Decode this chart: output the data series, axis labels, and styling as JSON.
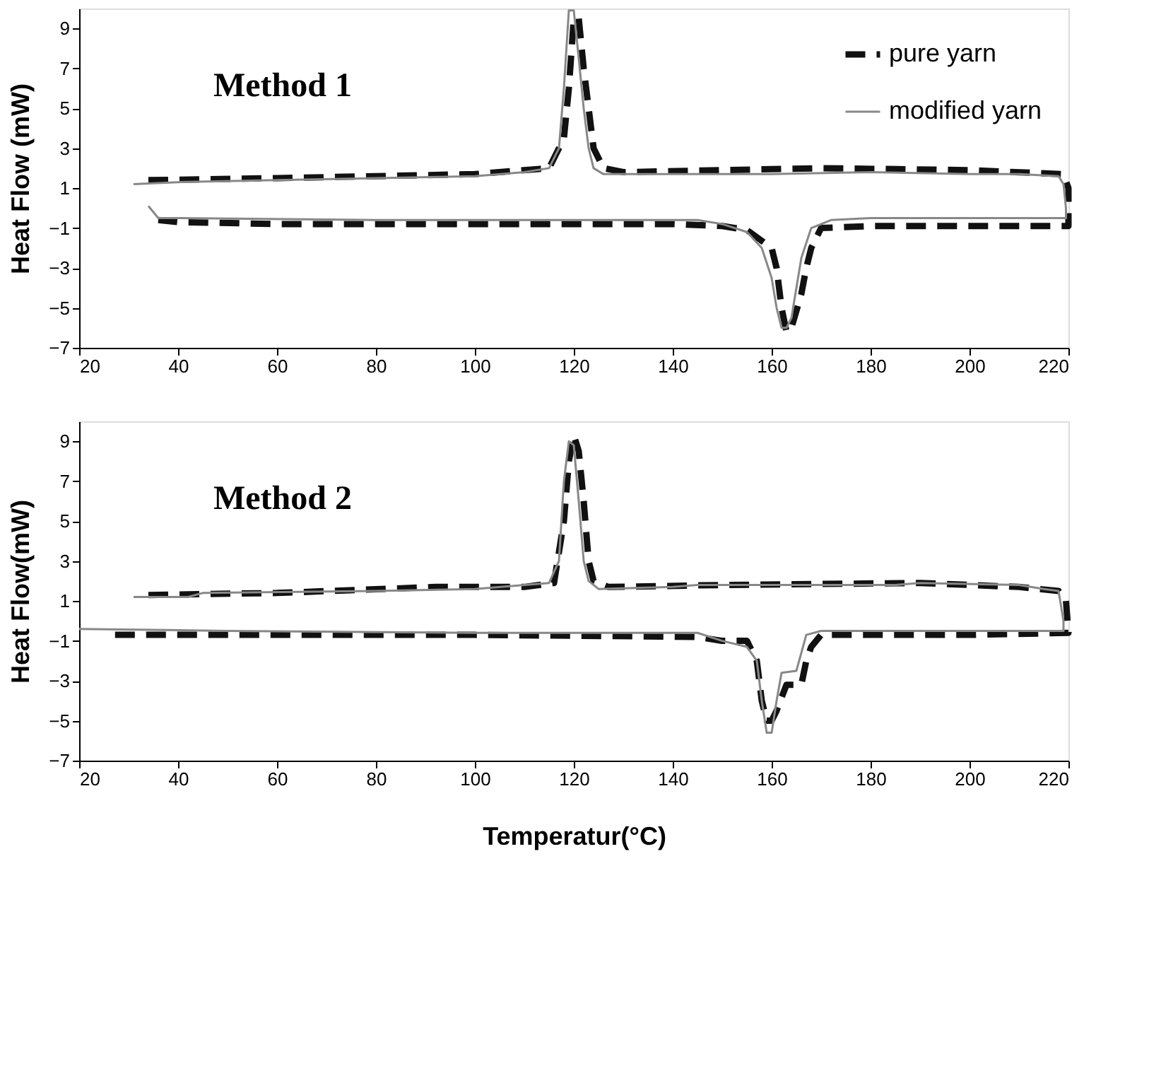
{
  "chart_data": [
    {
      "type": "line",
      "ylabel": "Heat Flow (mW)",
      "annotations": [
        "Method 1"
      ],
      "xlim": [
        20,
        220
      ],
      "ylim": [
        -7,
        10
      ],
      "xticks": [
        20,
        40,
        60,
        80,
        100,
        120,
        140,
        160,
        180,
        200,
        220
      ],
      "yticks": [
        -7,
        -5,
        -3,
        -1,
        1,
        3,
        5,
        7,
        9
      ],
      "legend": "top right",
      "grid": false,
      "marker": "none",
      "series": [
        {
          "name": "pure yarn",
          "color": "#111111",
          "line_style": "dashed",
          "x": [
            34,
            60,
            100,
            115,
            118,
            119,
            120,
            121,
            122,
            123,
            124,
            126,
            130,
            150,
            170,
            200,
            219,
            220,
            220,
            200,
            180,
            170,
            168,
            167,
            166,
            164,
            163,
            162,
            161,
            160,
            155,
            150,
            140,
            100,
            60,
            40,
            36
          ],
          "values": [
            1.4,
            1.5,
            1.7,
            2.0,
            3.5,
            6,
            9.5,
            9.5,
            7,
            5,
            3,
            2,
            1.8,
            1.9,
            2.0,
            1.9,
            1.7,
            1,
            -0.9,
            -0.9,
            -0.9,
            -1,
            -2,
            -3,
            -4.3,
            -6,
            -6.2,
            -5,
            -3,
            -2,
            -1.1,
            -0.9,
            -0.8,
            -0.8,
            -0.8,
            -0.7,
            -0.6
          ]
        },
        {
          "name": "modified yarn",
          "color": "#888888",
          "line_style": "solid",
          "x": [
            31,
            40,
            60,
            80,
            100,
            110,
            115,
            117,
            118,
            119,
            120,
            121,
            122,
            123,
            124,
            126,
            140,
            160,
            180,
            200,
            210,
            218,
            219,
            219.5,
            219.5,
            200,
            180,
            172,
            168,
            166,
            165,
            164,
            163,
            162,
            161,
            160,
            158,
            155,
            150,
            145,
            120,
            80,
            40,
            36,
            35,
            34
          ],
          "values": [
            1.2,
            1.3,
            1.4,
            1.5,
            1.6,
            1.8,
            2.0,
            3,
            6,
            9.9,
            9.9,
            7.5,
            5,
            3,
            2,
            1.7,
            1.7,
            1.7,
            1.8,
            1.7,
            1.7,
            1.6,
            1.2,
            0,
            -0.5,
            -0.5,
            -0.5,
            -0.6,
            -1,
            -2.5,
            -4,
            -5.5,
            -6,
            -6,
            -5,
            -3.5,
            -2,
            -1.2,
            -0.8,
            -0.6,
            -0.6,
            -0.6,
            -0.5,
            -0.5,
            -0.2,
            0.1
          ]
        }
      ]
    },
    {
      "type": "line",
      "xlabel": "Temperatur(°C)",
      "ylabel": "Heat Flow(mW)",
      "annotations": [
        "Method 2"
      ],
      "xlim": [
        20,
        220
      ],
      "ylim": [
        -7,
        10
      ],
      "xticks": [
        20,
        40,
        60,
        80,
        100,
        120,
        140,
        160,
        180,
        200,
        220
      ],
      "yticks": [
        -7,
        -5,
        -3,
        -1,
        1,
        3,
        5,
        7,
        9
      ],
      "legend": "top right",
      "grid": false,
      "marker": "none",
      "series": [
        {
          "name": "pure yarn",
          "color": "#111111",
          "line_style": "dashed",
          "x": [
            34,
            60,
            92,
            110,
            116,
            118,
            119,
            120,
            121,
            122,
            123,
            124,
            127,
            150,
            190,
            210,
            218,
            219.5,
            220,
            200,
            170,
            168,
            167,
            166,
            163,
            161,
            160,
            159,
            158,
            157,
            155,
            150,
            145,
            100,
            60,
            40,
            26
          ],
          "values": [
            1.3,
            1.4,
            1.7,
            1.7,
            1.9,
            5,
            8,
            9.3,
            8.5,
            6,
            3,
            2,
            1.7,
            1.8,
            1.9,
            1.7,
            1.5,
            1,
            -0.6,
            -0.7,
            -0.7,
            -1.3,
            -2,
            -3.2,
            -3.2,
            -4.5,
            -5,
            -5,
            -4,
            -2,
            -1,
            -1,
            -0.8,
            -0.7,
            -0.7,
            -0.7,
            -0.7
          ]
        },
        {
          "name": "modified yarn",
          "color": "#888888",
          "line_style": "solid",
          "x": [
            31,
            42,
            45,
            80,
            100,
            115,
            117,
            118,
            119,
            120,
            121,
            122,
            123,
            125,
            140,
            145,
            185,
            190,
            210,
            215,
            218,
            219,
            219,
            200,
            170,
            167,
            165,
            162,
            161,
            160,
            159,
            158,
            157,
            155,
            150,
            145,
            120,
            100,
            50,
            20
          ],
          "values": [
            1.2,
            1.2,
            1.4,
            1.5,
            1.6,
            1.9,
            3,
            7,
            9,
            8.8,
            6,
            3,
            2,
            1.6,
            1.7,
            1.8,
            1.8,
            1.9,
            1.8,
            1.6,
            1.5,
            0,
            -0.5,
            -0.5,
            -0.5,
            -0.7,
            -2.5,
            -2.6,
            -4,
            -5.6,
            -5.6,
            -4,
            -2,
            -1.3,
            -1,
            -0.6,
            -0.6,
            -0.6,
            -0.5,
            -0.4
          ]
        }
      ]
    }
  ]
}
